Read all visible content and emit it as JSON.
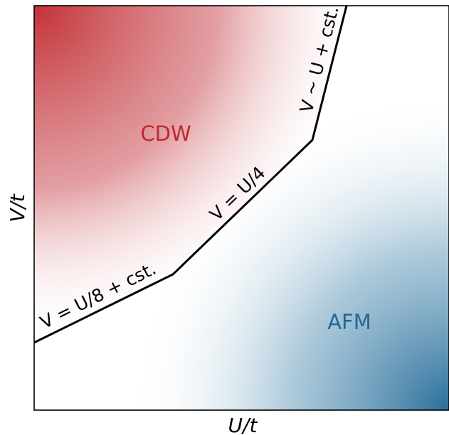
{
  "axes": {
    "xlabel": "U/t",
    "ylabel": "V/t"
  },
  "phases": {
    "cdw": {
      "label": "CDW",
      "color": "#c0272d"
    },
    "afm": {
      "label": "AFM",
      "color": "#1f6896"
    }
  },
  "boundary_labels": {
    "low": "V = U/8 + cst.",
    "mid": "V = U/4",
    "high": "V ~ U + cst."
  },
  "colors": {
    "cdw_gradient": "#c0272d",
    "afm_gradient": "#2a6f9b",
    "boundary_line": "#000000"
  }
}
